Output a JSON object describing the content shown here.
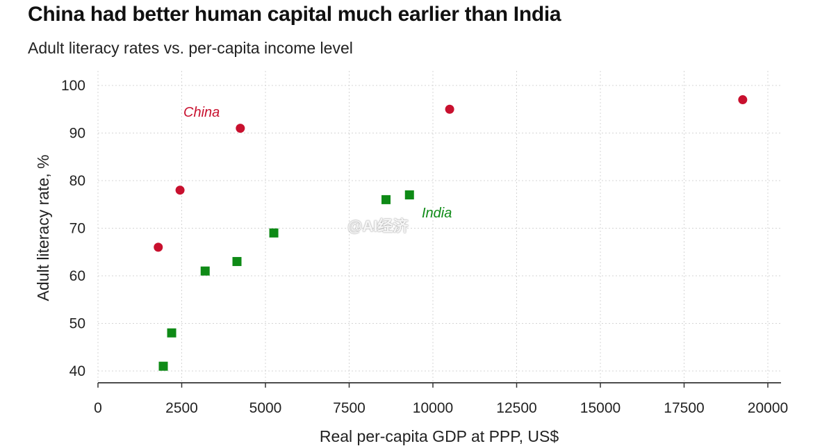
{
  "title": "China had better human capital much earlier than India",
  "subtitle": "Adult literacy rates vs. per-capita income level",
  "watermark": "@AI经济",
  "chart_data": {
    "type": "scatter",
    "title": "China had better human capital much earlier than India",
    "subtitle": "Adult literacy rates vs. per-capita income level",
    "xlabel": "Real per-capita GDP at PPP, US$",
    "ylabel": "Adult literacy rate, %",
    "xlim": [
      0,
      20000
    ],
    "ylim": [
      40,
      100
    ],
    "xticks": [
      0,
      2500,
      5000,
      7500,
      10000,
      12500,
      15000,
      17500,
      20000
    ],
    "yticks": [
      40,
      50,
      60,
      70,
      80,
      90,
      100
    ],
    "grid": true,
    "series": [
      {
        "name": "China",
        "marker": "circle",
        "color": "#c8102e",
        "points": [
          {
            "x": 1800,
            "y": 66
          },
          {
            "x": 2450,
            "y": 78
          },
          {
            "x": 4250,
            "y": 91
          },
          {
            "x": 10500,
            "y": 95
          },
          {
            "x": 19250,
            "y": 97
          }
        ]
      },
      {
        "name": "India",
        "marker": "square",
        "color": "#0e8a16",
        "points": [
          {
            "x": 1950,
            "y": 41
          },
          {
            "x": 2200,
            "y": 48
          },
          {
            "x": 3200,
            "y": 61
          },
          {
            "x": 4150,
            "y": 63
          },
          {
            "x": 5250,
            "y": 69
          },
          {
            "x": 8600,
            "y": 76
          },
          {
            "x": 9300,
            "y": 77
          }
        ]
      }
    ]
  }
}
